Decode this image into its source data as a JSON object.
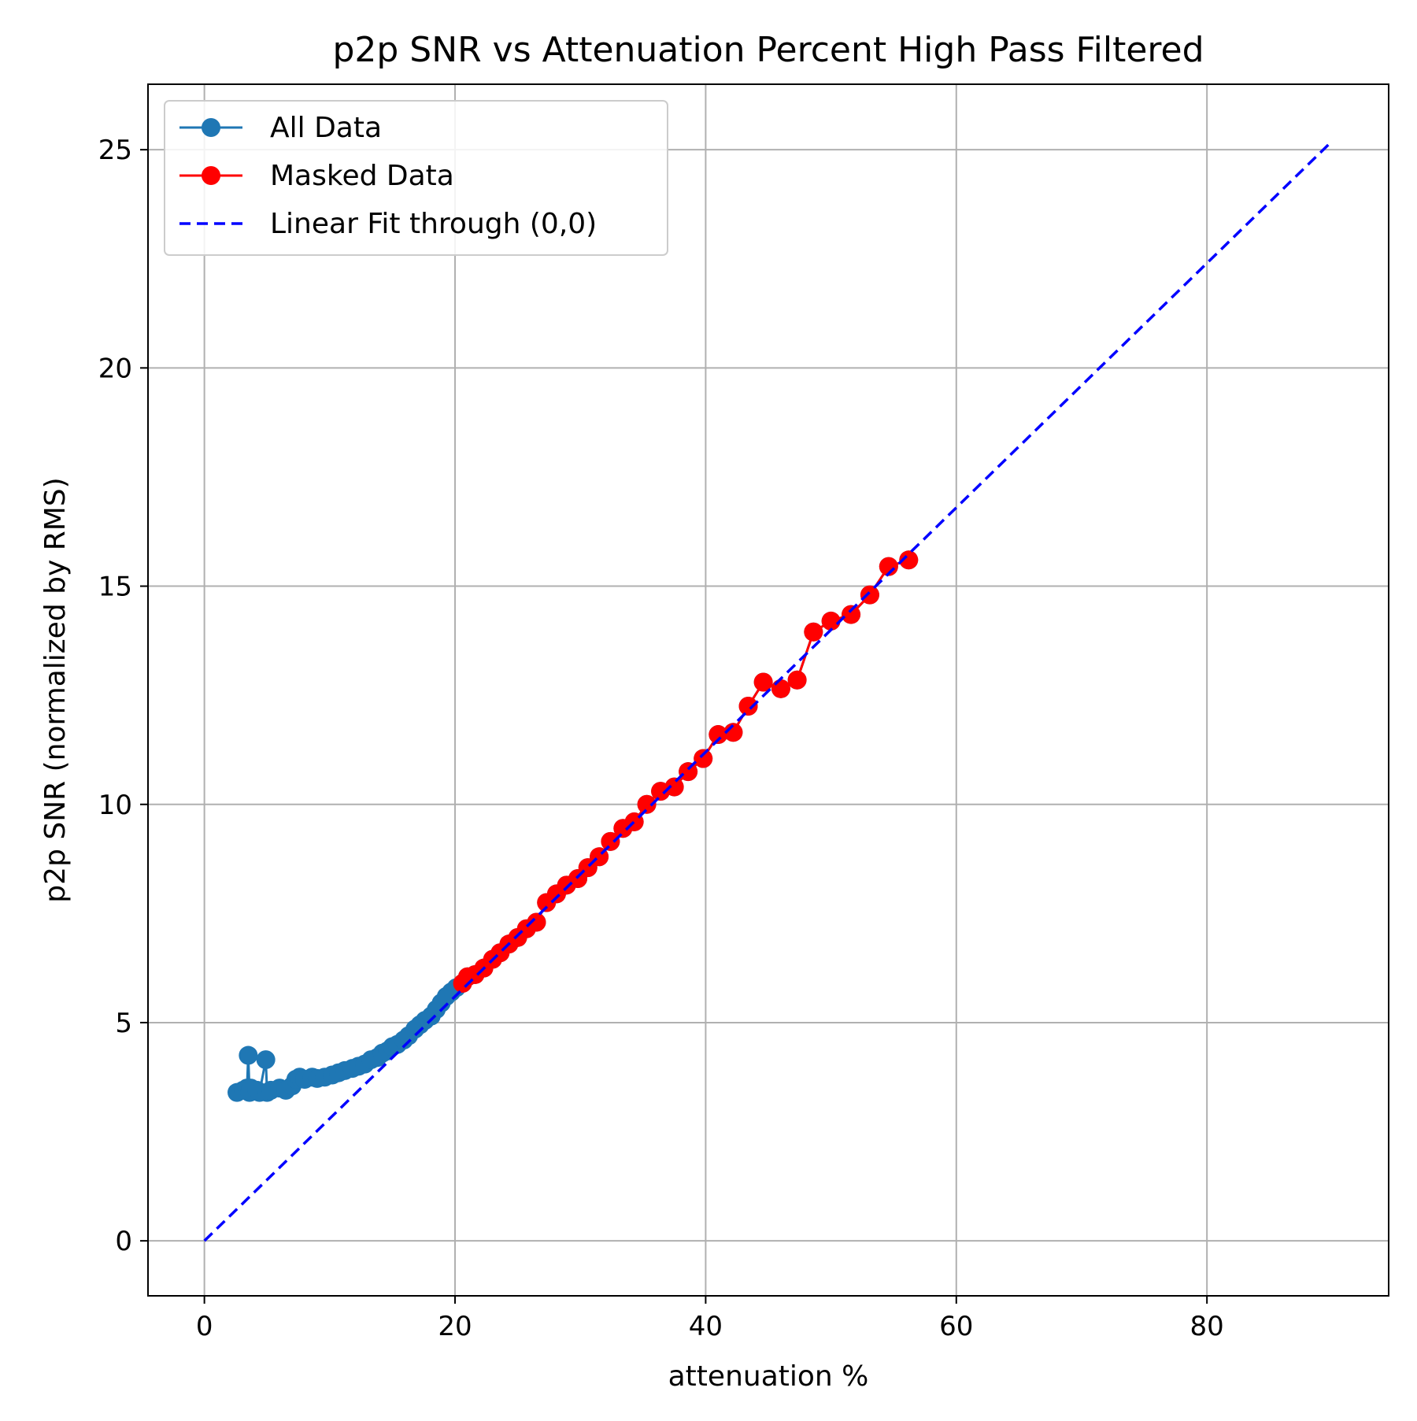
{
  "chart_data": {
    "type": "line",
    "title": "p2p SNR vs Attenuation Percent High Pass Filtered",
    "xlabel": "attenuation %",
    "ylabel": "p2p SNR (normalized by RMS)",
    "xlim": [
      -4.5,
      94.5
    ],
    "ylim": [
      -1.26,
      26.5
    ],
    "xticks": [
      0,
      20,
      40,
      60,
      80
    ],
    "yticks": [
      0,
      5,
      10,
      15,
      20,
      25
    ],
    "grid": true,
    "legend_position": "top-left",
    "series": [
      {
        "name": "All Data",
        "color": "#1f77b4",
        "style": "line-marker",
        "x": [
          2.6,
          3.1,
          3.4,
          3.5,
          3.6,
          3.7,
          4.2,
          4.4,
          4.9,
          5.0,
          5.3,
          6.0,
          6.5,
          7.0,
          7.3,
          7.6,
          8.0,
          8.6,
          9.0,
          9.6,
          10.2,
          10.7,
          11.2,
          11.8,
          12.3,
          12.8,
          13.3,
          13.8,
          14.2,
          14.6,
          15.0,
          15.4,
          15.9,
          16.3,
          16.8,
          17.2,
          17.6,
          18.1,
          18.5,
          18.9,
          19.3,
          19.7,
          20.1,
          20.6,
          21.0,
          21.6,
          22.3,
          23.0,
          23.6,
          24.3,
          25.0,
          25.7,
          26.5,
          27.3,
          28.1,
          28.9,
          29.8,
          30.6,
          31.5,
          32.4,
          33.4,
          34.3,
          35.3,
          36.4,
          37.5,
          38.6,
          39.8,
          41.0,
          42.2,
          43.4,
          44.6,
          46.0,
          47.3,
          48.6,
          50.0,
          51.6,
          53.1,
          54.6,
          56.2
        ],
        "y": [
          3.4,
          3.45,
          3.5,
          4.25,
          3.4,
          3.5,
          3.45,
          3.4,
          4.15,
          3.4,
          3.45,
          3.5,
          3.45,
          3.55,
          3.7,
          3.75,
          3.7,
          3.75,
          3.72,
          3.75,
          3.8,
          3.85,
          3.9,
          3.95,
          4.0,
          4.05,
          4.15,
          4.2,
          4.3,
          4.35,
          4.45,
          4.5,
          4.6,
          4.7,
          4.85,
          4.95,
          5.05,
          5.15,
          5.3,
          5.45,
          5.6,
          5.7,
          5.8,
          5.9,
          6.05,
          6.1,
          6.25,
          6.45,
          6.6,
          6.8,
          6.95,
          7.15,
          7.3,
          7.75,
          7.95,
          8.15,
          8.3,
          8.55,
          8.8,
          9.15,
          9.45,
          9.6,
          10.0,
          10.3,
          10.4,
          10.75,
          11.05,
          11.6,
          11.65,
          12.25,
          12.8,
          12.65,
          12.85,
          13.95,
          14.2,
          14.35,
          14.8,
          15.45,
          15.6
        ]
      },
      {
        "name": "Masked Data",
        "color": "#ff0000",
        "style": "line-marker",
        "x": [
          20.6,
          21.0,
          21.6,
          22.3,
          23.0,
          23.6,
          24.3,
          25.0,
          25.7,
          26.5,
          27.3,
          28.1,
          28.9,
          29.8,
          30.6,
          31.5,
          32.4,
          33.4,
          34.3,
          35.3,
          36.4,
          37.5,
          38.6,
          39.8,
          41.0,
          42.2,
          43.4,
          44.6,
          46.0,
          47.3,
          48.6,
          50.0,
          51.6,
          53.1,
          54.6,
          56.2
        ],
        "y": [
          5.9,
          6.05,
          6.1,
          6.25,
          6.45,
          6.6,
          6.8,
          6.95,
          7.15,
          7.3,
          7.75,
          7.95,
          8.15,
          8.3,
          8.55,
          8.8,
          9.15,
          9.45,
          9.6,
          10.0,
          10.3,
          10.4,
          10.75,
          11.05,
          11.6,
          11.65,
          12.25,
          12.8,
          12.65,
          12.85,
          13.95,
          14.2,
          14.35,
          14.8,
          15.45,
          15.6
        ]
      },
      {
        "name": "Linear Fit through (0,0)",
        "color": "#0000ff",
        "style": "dashed",
        "x": [
          0,
          90
        ],
        "y": [
          0,
          25.2
        ]
      }
    ]
  }
}
